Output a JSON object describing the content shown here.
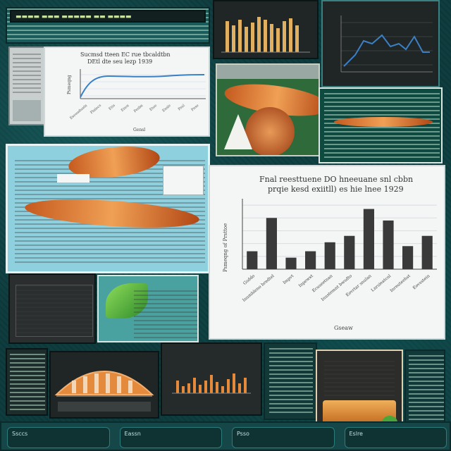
{
  "colors": {
    "background": "#0f3d3f",
    "panel_dark": "#202625",
    "panel_teal": "#1a5b5c",
    "bar_gray": "#3a3a3a",
    "accent_orange": "#e38a3c",
    "accent_green": "#5ab43c",
    "line_blue": "#3b7fc4"
  },
  "main_chart": {
    "title_line1": "Fnal reesttuene DO hneeuane snl cbbn",
    "title_line2": "prqie kesd exiitll) es hie lnee 1929",
    "ylabel": "Psmeqng of Prsttoe",
    "xlabel": "Gseaw",
    "tick_labels": [
      "Gsddo",
      "Inumbleno bredtel",
      "Impvt",
      "Inpewxt",
      "Ecuseetnan",
      "Inustemnt bwsdto",
      "Eovrtar snulan",
      "Lnrsieatcnl",
      "Inreuteehst",
      "Eovsstein"
    ],
    "values": [
      14,
      40,
      9,
      14,
      21,
      26,
      47,
      38,
      18,
      26
    ],
    "ylim": [
      0,
      55
    ]
  },
  "top_left_chart": {
    "title_line1": "Sucmsd tteen EC rue tbcaldtbn",
    "title_line2": "DEtl dte seu lezp 1939",
    "footer": "Gensl",
    "ylabel": "Psmeqng",
    "tick_labels": [
      "Eseuuduatn",
      "Plnlecs",
      "Etis",
      "Enen",
      "Pesbn",
      "Etoe",
      "Ensle",
      "Psul",
      "Pnse"
    ]
  },
  "bottom_tickers": [
    "Ssccs",
    "Eassn",
    "Psso",
    "Eslre"
  ]
}
